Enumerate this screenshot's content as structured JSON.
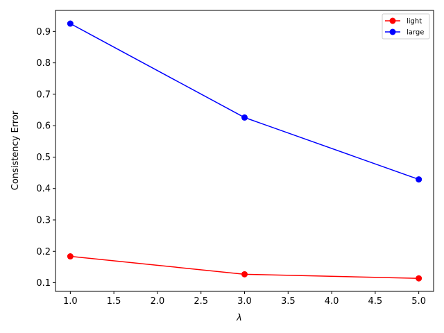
{
  "chart_data": {
    "type": "line",
    "title": "",
    "xlabel": "λ",
    "ylabel": "Consistency Error",
    "x": [
      1.0,
      3.0,
      5.0
    ],
    "series": [
      {
        "name": "light",
        "values": [
          0.184,
          0.127,
          0.114
        ],
        "color": "#ff0000"
      },
      {
        "name": "large",
        "values": [
          0.925,
          0.626,
          0.429
        ],
        "color": "#0000ff"
      }
    ],
    "xlim": [
      0.83,
      5.17
    ],
    "ylim": [
      0.0725,
      0.967
    ],
    "xticks": [
      "1.0",
      "1.5",
      "2.0",
      "2.5",
      "3.0",
      "3.5",
      "4.0",
      "4.5",
      "5.0"
    ],
    "yticks": [
      "0.1",
      "0.2",
      "0.3",
      "0.4",
      "0.5",
      "0.6",
      "0.7",
      "0.8",
      "0.9"
    ],
    "grid": false,
    "legend_position": "top-right",
    "marker": "circle"
  }
}
